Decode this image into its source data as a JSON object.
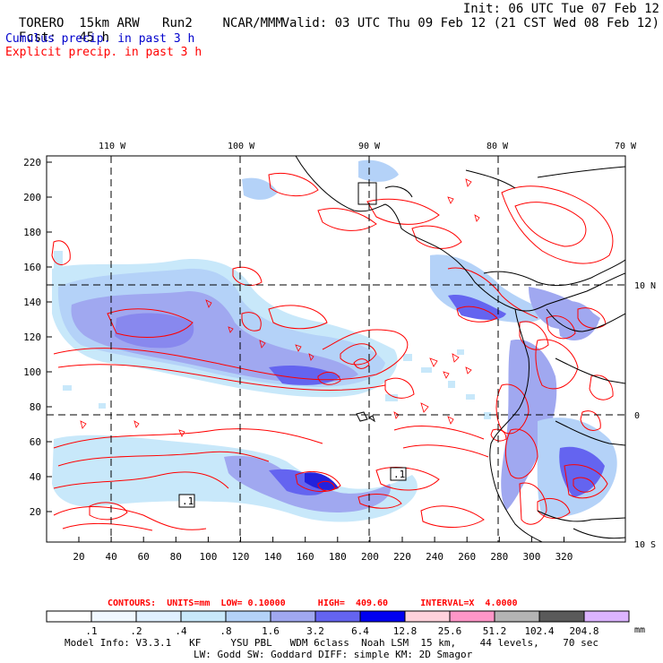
{
  "header": {
    "model": "TORERO",
    "resolution": "15km ARW",
    "run": "Run2",
    "org": "NCAR/MMM",
    "init": "Init: 06 UTC Tue 07 Feb 12",
    "fcst_label": "Fcst:",
    "fcst_hours": "45 h",
    "valid": "Valid: 03 UTC Thu 09 Feb 12 (21 CST Wed 08 Feb 12)",
    "line_cumulus": "Cumulus precip. in past 3 h",
    "line_explicit": "Explicit precip. in past 3 h"
  },
  "colors": {
    "cumulus_text": "#0000cc",
    "explicit_text": "#ff0000",
    "contour_red": "#ff0000",
    "coast": "#000000"
  },
  "map": {
    "top_lon_labels": [
      "110 W",
      "100 W",
      "90 W",
      "80 W",
      "70 W"
    ],
    "right_lat_labels": [
      "10 N",
      "0",
      "10 S"
    ],
    "y_ticks": [
      "20",
      "40",
      "60",
      "80",
      "100",
      "120",
      "140",
      "160",
      "180",
      "200",
      "220"
    ],
    "x_ticks": [
      "20",
      "40",
      "60",
      "80",
      "100",
      "120",
      "140",
      "160",
      "180",
      "200",
      "220",
      "240",
      "260",
      "280",
      "300",
      "320"
    ],
    "box_labels": [
      ".1",
      ".1"
    ]
  },
  "legend": {
    "contours_text": "CONTOURS:  UNITS=mm  LOW= 0.10000      HIGH=  409.60      INTERVAL=X  4.0000",
    "unit": "mm",
    "values": [
      ".1",
      ".2",
      ".4",
      ".8",
      "1.6",
      "3.2",
      "6.4",
      "12.8",
      "25.6",
      "51.2",
      "102.4",
      "204.8"
    ],
    "colors": [
      "#ffffff",
      "#f0f8ff",
      "#e0f0ff",
      "#c8e8fa",
      "#b4d2f8",
      "#a0a8f0",
      "#6464f0",
      "#0000f0",
      "#ffd2dc",
      "#ff96c8",
      "#b4b4b4",
      "#5a5a5a",
      "#dcb4ff"
    ]
  },
  "footer": {
    "line1": "Model Info: V3.3.1   KF     YSU PBL   WDM 6class  Noah LSM  15 km,    44 levels,    70 sec",
    "line2": "LW: Godd SW: Goddard DIFF: simple KM: 2D Smagor"
  }
}
